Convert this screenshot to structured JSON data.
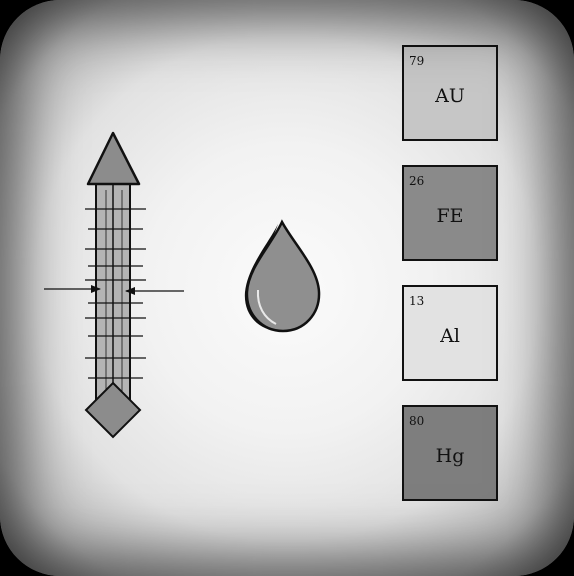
{
  "colors": {
    "arrow_fill": "#8c8c8c",
    "drop_fill": "#8f8f8f",
    "outline": "#111111"
  },
  "icons": {
    "gauge": "arrow-gauge-icon",
    "drop": "liquid-drop-icon"
  },
  "elements": [
    {
      "number": "79",
      "symbol": "AU",
      "color": "#c6c6c6"
    },
    {
      "number": "26",
      "symbol": "FE",
      "color": "#8a8a8a"
    },
    {
      "number": "13",
      "symbol": "Al",
      "color": "#e2e2e2"
    },
    {
      "number": "80",
      "symbol": "Hg",
      "color": "#7e7e7e"
    }
  ]
}
